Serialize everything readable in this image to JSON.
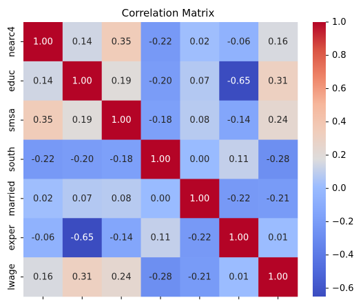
{
  "chart_data": {
    "type": "heatmap",
    "title": "Correlation Matrix",
    "xlabel": "",
    "ylabel": "",
    "labels": [
      "nearc4",
      "educ",
      "smsa",
      "south",
      "married",
      "exper",
      "lwage"
    ],
    "matrix": [
      [
        1.0,
        0.14,
        0.35,
        -0.22,
        0.02,
        -0.06,
        0.16
      ],
      [
        0.14,
        1.0,
        0.19,
        -0.2,
        0.07,
        -0.65,
        0.31
      ],
      [
        0.35,
        0.19,
        1.0,
        -0.18,
        0.08,
        -0.14,
        0.24
      ],
      [
        -0.22,
        -0.2,
        -0.18,
        1.0,
        -0.0,
        0.11,
        -0.28
      ],
      [
        0.02,
        0.07,
        0.08,
        -0.0,
        1.0,
        -0.22,
        -0.21
      ],
      [
        -0.06,
        -0.65,
        -0.14,
        0.11,
        -0.22,
        1.0,
        0.01
      ],
      [
        0.16,
        0.31,
        0.24,
        -0.28,
        -0.21,
        0.01,
        1.0
      ]
    ],
    "colormap": "coolwarm",
    "vmin": -0.65,
    "vmax": 1.0,
    "colorbar": {
      "ticks": [
        1.0,
        0.8,
        0.6,
        0.4,
        0.2,
        0.0,
        -0.2,
        -0.4,
        -0.6
      ],
      "tick_labels": [
        "1.0",
        "0.8",
        "0.6",
        "0.4",
        "0.2",
        "0.0",
        "−0.2",
        "−0.4",
        "−0.6"
      ],
      "placement": "right"
    },
    "grid": false
  }
}
